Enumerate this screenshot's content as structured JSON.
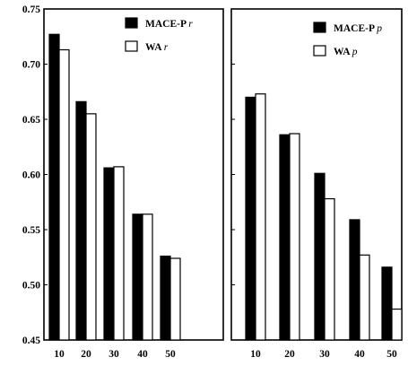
{
  "chart_data": [
    {
      "type": "bar",
      "categories": [
        "10",
        "20",
        "30",
        "40",
        "50"
      ],
      "series": [
        {
          "name": "MACE-P",
          "name_italic": "r",
          "color": "#000000",
          "values": [
            0.727,
            0.666,
            0.606,
            0.564,
            0.526
          ]
        },
        {
          "name": "WA",
          "name_italic": "r",
          "color": "#ffffff",
          "values": [
            0.713,
            0.655,
            0.607,
            0.564,
            0.524
          ]
        }
      ],
      "ylim": [
        0.45,
        0.75
      ],
      "yticks": [
        "0.45",
        "0.50",
        "0.55",
        "0.60",
        "0.65",
        "0.70",
        "0.75"
      ],
      "legend_position": "top-right",
      "grid": false
    },
    {
      "type": "bar",
      "categories": [
        "10",
        "20",
        "30",
        "40",
        "50"
      ],
      "series": [
        {
          "name": "MACE-P",
          "name_italic": "p",
          "color": "#000000",
          "values": [
            0.67,
            0.636,
            0.601,
            0.559,
            0.516
          ]
        },
        {
          "name": "WA",
          "name_italic": "p",
          "color": "#ffffff",
          "values": [
            0.673,
            0.637,
            0.578,
            0.527,
            0.478
          ]
        }
      ],
      "ylim": [
        0.45,
        0.75
      ],
      "legend_position": "top-right",
      "grid": false
    }
  ]
}
